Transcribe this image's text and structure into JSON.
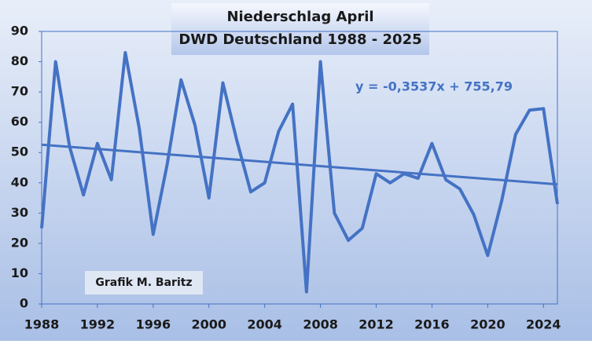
{
  "chart_data": {
    "type": "line",
    "title": "Niederschlag April",
    "subtitle": "DWD Deutschland 1988 - 2025",
    "credit": "Grafik M. Baritz",
    "x": [
      1988,
      1989,
      1990,
      1991,
      1992,
      1993,
      1994,
      1995,
      1996,
      1997,
      1998,
      1999,
      2000,
      2001,
      2002,
      2003,
      2004,
      2005,
      2006,
      2007,
      2008,
      2009,
      2010,
      2011,
      2012,
      2013,
      2014,
      2015,
      2016,
      2017,
      2018,
      2019,
      2020,
      2021,
      2022,
      2023,
      2024,
      2025
    ],
    "series": [
      {
        "name": "Niederschlag April",
        "color": "#4472c4",
        "values": [
          25,
          80,
          52,
          36,
          53,
          41,
          83,
          58,
          23,
          46,
          74,
          59,
          35,
          73,
          54,
          37,
          40,
          57,
          66,
          4,
          80,
          30,
          21,
          25,
          43,
          40,
          43,
          41.5,
          53,
          41,
          38,
          29.5,
          16,
          34,
          56,
          64,
          64.5,
          33
        ]
      }
    ],
    "trend": {
      "label": "y = -0,3537x + 755,79",
      "color": "#4472c4",
      "x": [
        1988,
        2025
      ],
      "values": [
        52.6,
        39.5
      ]
    },
    "xlim": [
      1988,
      2025
    ],
    "xticks": [
      1988,
      1992,
      1996,
      2000,
      2004,
      2008,
      2012,
      2016,
      2020,
      2024
    ],
    "ylim": [
      0,
      90
    ],
    "yticks": [
      0,
      10,
      20,
      30,
      40,
      50,
      60,
      70,
      80,
      90
    ],
    "grid": false
  }
}
